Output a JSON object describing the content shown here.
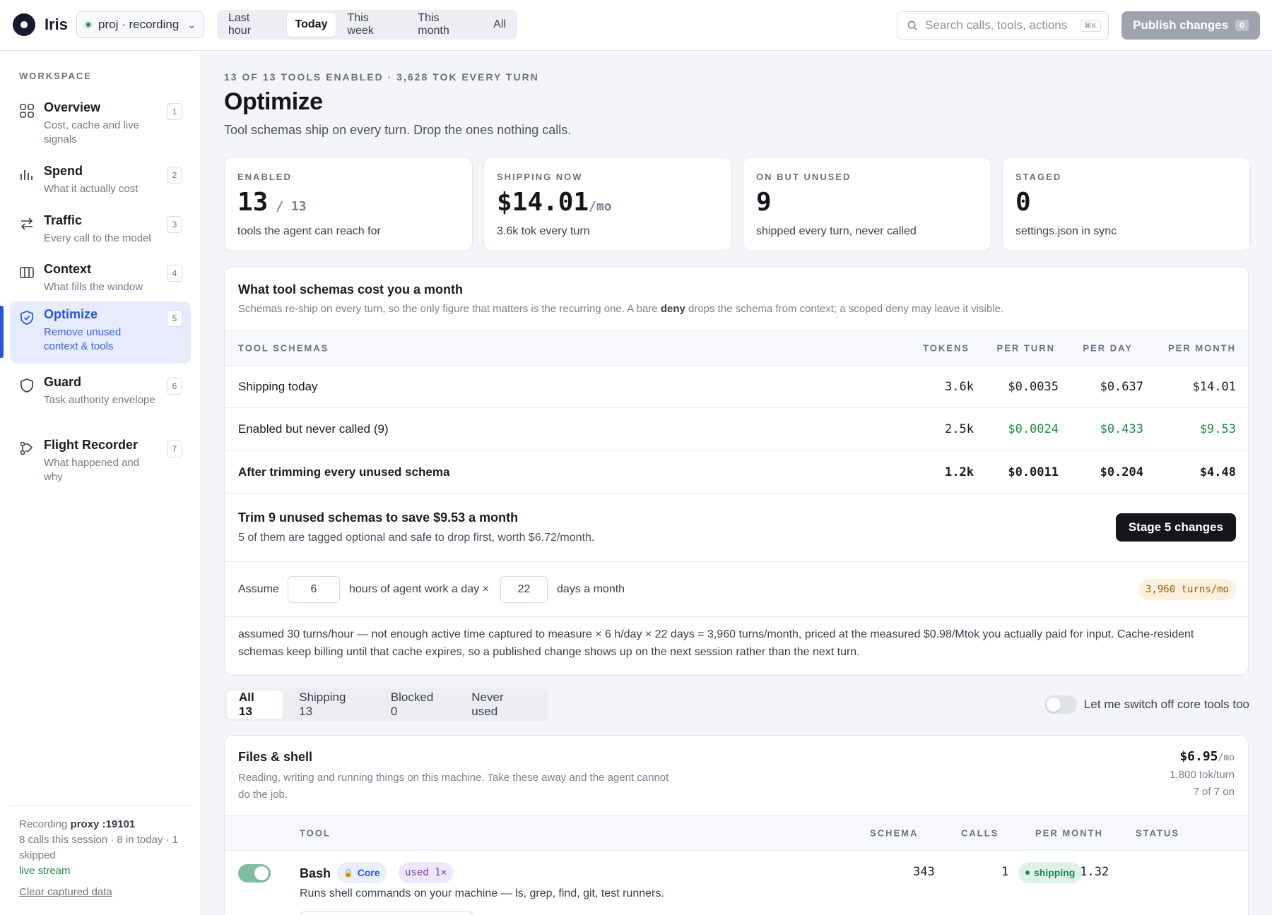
{
  "app": {
    "name": "Iris",
    "project": "proj · recording",
    "time_ranges": [
      "Last hour",
      "Today",
      "This week",
      "This month",
      "All"
    ],
    "time_range_selected": "Today",
    "search_placeholder": "Search calls, tools, actions",
    "search_shortcut": "⌘K",
    "publish_label": "Publish changes",
    "publish_count": "0"
  },
  "sidebar": {
    "section_label": "WORKSPACE",
    "items": [
      {
        "title": "Overview",
        "subtitle": "Cost, cache and live signals",
        "num": "1",
        "icon": "grid-icon"
      },
      {
        "title": "Spend",
        "subtitle": "What it actually cost",
        "num": "2",
        "icon": "bar-chart-icon"
      },
      {
        "title": "Traffic",
        "subtitle": "Every call to the model",
        "num": "3",
        "icon": "arrows-icon"
      },
      {
        "title": "Context",
        "subtitle": "What fills the window",
        "num": "4",
        "icon": "columns-icon"
      },
      {
        "title": "Optimize",
        "subtitle": "Remove unused context & tools",
        "num": "5",
        "icon": "shield-check-icon",
        "active": true
      },
      {
        "title": "Guard",
        "subtitle": "Task authority envelope",
        "num": "6",
        "icon": "shield-icon"
      },
      {
        "title": "Flight Recorder",
        "subtitle": "What happened and why",
        "num": "7",
        "icon": "flight-recorder-icon"
      }
    ],
    "recording": {
      "prefix": "Recording",
      "target": "proxy :19101",
      "stats": "8 calls this session · 8 in today · 1 skipped",
      "live": "live stream",
      "clear": "Clear captured data"
    }
  },
  "page": {
    "eyebrow": "13 OF 13 TOOLS ENABLED · 3,628 TOK EVERY TURN",
    "title": "Optimize",
    "lede": "Tool schemas ship on every turn. Drop the ones nothing calls."
  },
  "cards": [
    {
      "label": "ENABLED",
      "value": "13",
      "suffix": " / 13",
      "desc": "tools the agent can reach for"
    },
    {
      "label": "SHIPPING NOW",
      "value": "$14.01",
      "suffix": "/mo",
      "desc": "3.6k tok every turn"
    },
    {
      "label": "ON BUT UNUSED",
      "value": "9",
      "suffix": "",
      "desc": "shipped every turn, never called"
    },
    {
      "label": "STAGED",
      "value": "0",
      "suffix": "",
      "desc": "settings.json in sync"
    }
  ],
  "cost_panel": {
    "title": "What tool schemas cost you a month",
    "desc_pre": "Schemas re-ship on every turn, so the only figure that matters is the recurring one. A bare ",
    "desc_bold": "deny",
    "desc_post": " drops the schema from context; a scoped deny may leave it visible.",
    "columns": [
      "TOOL SCHEMAS",
      "TOKENS",
      "PER TURN",
      "PER DAY",
      "PER MONTH"
    ],
    "rows": [
      {
        "label": "Shipping today",
        "tokens": "3.6k",
        "per_turn": "$0.0035",
        "per_day": "$0.637",
        "per_month": "$14.01"
      },
      {
        "label": "Enabled but never called (9)",
        "tokens": "2.5k",
        "per_turn": "$0.0024",
        "per_day": "$0.433",
        "per_month": "$9.53"
      },
      {
        "label": "After trimming every unused schema",
        "tokens": "1.2k",
        "per_turn": "$0.0011",
        "per_day": "$0.204",
        "per_month": "$4.48"
      }
    ],
    "trim_title": "Trim 9 unused schemas to save $9.53 a month",
    "trim_desc": "5 of them are tagged optional and safe to drop first, worth $6.72/month.",
    "stage_button": "Stage 5 changes",
    "assume_label": "Assume",
    "hours_value": "6",
    "hours_label": "hours of agent work a day ×",
    "days_value": "22",
    "days_label": "days a month",
    "turns_pill": "3,960 turns/mo",
    "note": "assumed 30 turns/hour — not enough active time captured to measure × 6 h/day × 22 days = 3,960 turns/month, priced at the measured $0.98/Mtok you actually paid for input. Cache-resident schemas keep billing until that cache expires, so a published change shows up on the next session rather than the next turn."
  },
  "filters": {
    "tabs": [
      "All 13",
      "Shipping 13",
      "Blocked 0",
      "Never used"
    ],
    "active": "All 13",
    "toggle_label": "Let me switch off core tools too"
  },
  "group": {
    "title": "Files & shell",
    "desc": "Reading, writing and running things on this machine. Take these away and the agent cannot do the job.",
    "cost": "$6.95",
    "cost_unit": "/mo",
    "tok_turn": "1,800 tok/turn",
    "on_count": "7 of 7 on",
    "columns": [
      "TOOL",
      "SCHEMA",
      "CALLS",
      "PER MONTH",
      "STATUS"
    ],
    "tools": [
      {
        "name": "Bash",
        "core_tag": "Core",
        "used_tag": "used 1×",
        "desc": "Runs shell commands on your machine — ls, grep, find, git, test runners.",
        "schema": "343",
        "calls": "1",
        "per_month": "$1.32",
        "status": "shipping"
      }
    ]
  },
  "colors": {
    "accent": "#2a55d8",
    "green": "#1f8a4c",
    "dark": "#14161c"
  }
}
